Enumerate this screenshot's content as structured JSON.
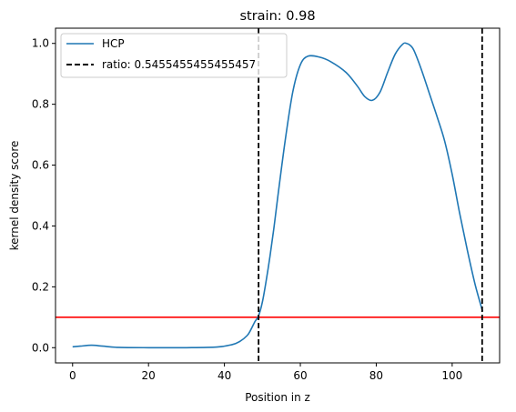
{
  "chart_data": {
    "type": "line",
    "title": "strain: 0.98",
    "xlabel": "Position in z",
    "ylabel": "kernel density score",
    "xlim": [
      -4.5,
      112.5
    ],
    "ylim": [
      -0.05,
      1.05
    ],
    "xticks": [
      0,
      20,
      40,
      60,
      80,
      100
    ],
    "yticks": [
      0.0,
      0.2,
      0.4,
      0.6,
      0.8,
      1.0
    ],
    "xtick_labels": [
      "0",
      "20",
      "40",
      "60",
      "80",
      "100"
    ],
    "ytick_labels": [
      "0.0",
      "0.2",
      "0.4",
      "0.6",
      "0.8",
      "1.0"
    ],
    "grid": false,
    "legend_position": "upper-left",
    "series": [
      {
        "name": "HCP",
        "color": "#1f77b4",
        "x": [
          0,
          2,
          5,
          8,
          12,
          20,
          30,
          38,
          42,
          44,
          46,
          47,
          48,
          49,
          50,
          51,
          52,
          53,
          54,
          56,
          58,
          60,
          62,
          65,
          68,
          72,
          75,
          77,
          79,
          81,
          83,
          85,
          87,
          88,
          89,
          90,
          92,
          94,
          96,
          98,
          100,
          102,
          104,
          106,
          108
        ],
        "y": [
          0.003,
          0.005,
          0.008,
          0.005,
          0.001,
          0.0,
          0.0,
          0.002,
          0.01,
          0.02,
          0.04,
          0.06,
          0.085,
          0.105,
          0.15,
          0.22,
          0.3,
          0.39,
          0.49,
          0.68,
          0.84,
          0.93,
          0.958,
          0.955,
          0.94,
          0.905,
          0.86,
          0.825,
          0.813,
          0.84,
          0.905,
          0.965,
          0.998,
          1.0,
          0.993,
          0.975,
          0.91,
          0.835,
          0.76,
          0.68,
          0.57,
          0.44,
          0.32,
          0.21,
          0.12
        ]
      }
    ],
    "vlines": [
      {
        "label": "ratio: 0.5455455455455457",
        "x": 49.0,
        "style": "dashed",
        "color": "#000000"
      },
      {
        "x": 107.9,
        "style": "dashed",
        "color": "#000000"
      }
    ],
    "hlines": [
      {
        "y": 0.1,
        "color": "#ff0000"
      }
    ]
  }
}
